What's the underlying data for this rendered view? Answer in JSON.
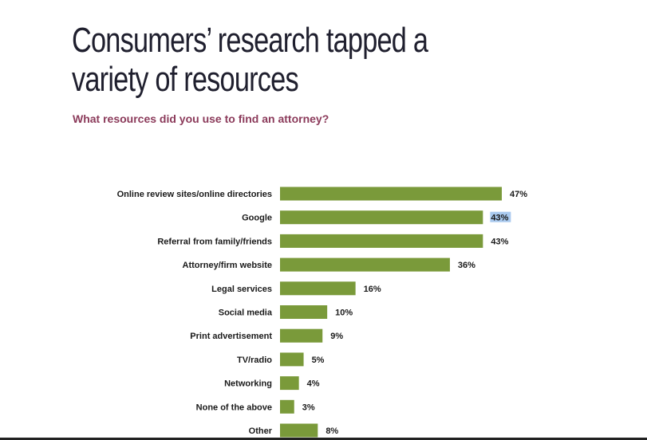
{
  "header": {
    "title_line1": "Consumers’ research tapped a",
    "title_line2": "variety of resources",
    "subtitle": "What resources did you use to find an attorney?"
  },
  "colors": {
    "bar": "#7a9a3a",
    "title": "#1f1f2e",
    "subtitle": "#8b3a5a",
    "selection_highlight": "#a9c9ee"
  },
  "chart_data": {
    "type": "bar",
    "orientation": "horizontal",
    "categories": [
      "Online review sites/online directories",
      "Google",
      "Referral from family/friends",
      "Attorney/firm website",
      "Legal services",
      "Social media",
      "Print advertisement",
      "TV/radio",
      "Networking",
      "None of the above",
      "Other"
    ],
    "values": [
      47,
      43,
      43,
      36,
      16,
      10,
      9,
      5,
      4,
      3,
      8
    ],
    "value_labels": [
      "47%",
      "43%",
      "43%",
      "36%",
      "16%",
      "10%",
      "9%",
      "5%",
      "4%",
      "3%",
      "8%"
    ],
    "highlighted_value_label_index": 1,
    "xlim": [
      0,
      47
    ],
    "grid": false,
    "legend": "none"
  }
}
